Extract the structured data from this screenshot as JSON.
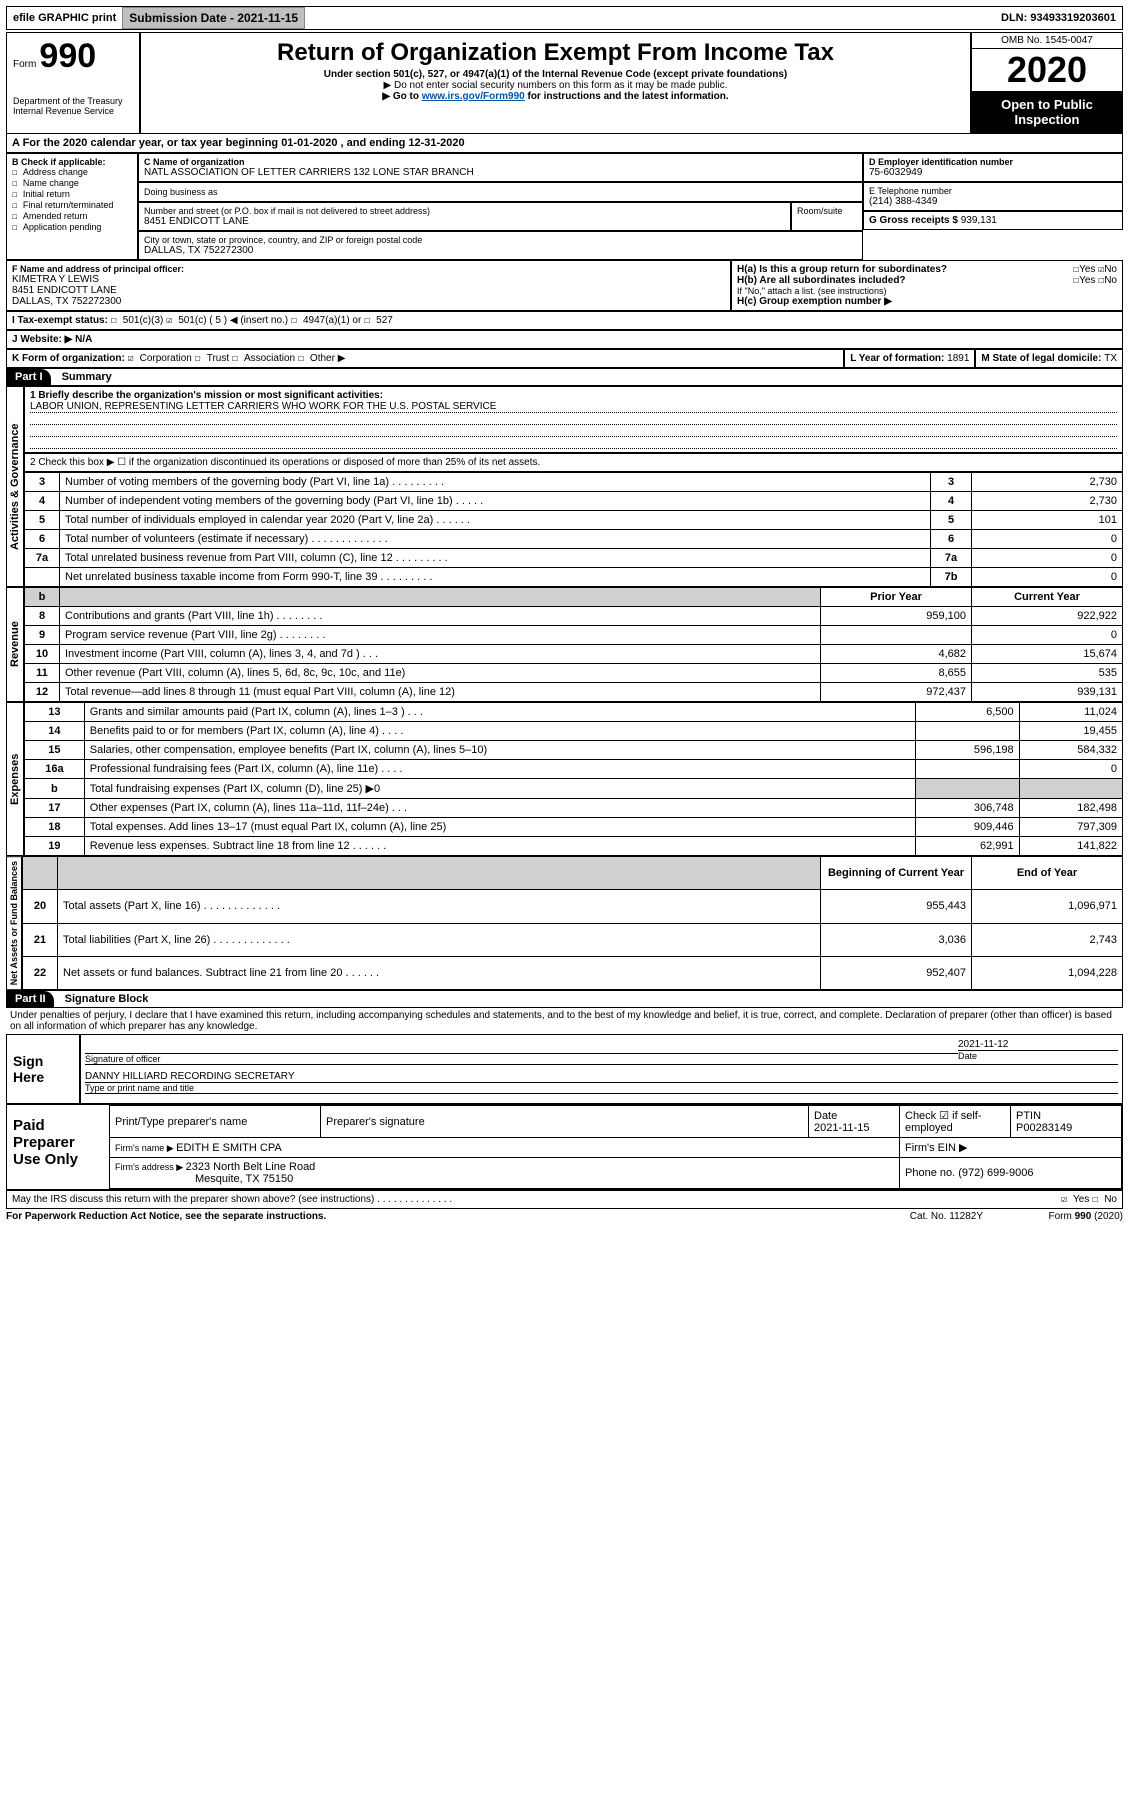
{
  "topbar": {
    "efile": "efile GRAPHIC print",
    "subdate_label": "Submission Date - 2021-11-15",
    "dln": "DLN: 93493319203601"
  },
  "header": {
    "form_label_small": "Form",
    "form_number": "990",
    "title": "Return of Organization Exempt From Income Tax",
    "subtitle1": "Under section 501(c), 527, or 4947(a)(1) of the Internal Revenue Code (except private foundations)",
    "subtitle2": "▶ Do not enter social security numbers on this form as it may be made public.",
    "subtitle3_pre": "▶ Go to ",
    "subtitle3_link": "www.irs.gov/Form990",
    "subtitle3_post": " for instructions and the latest information.",
    "omb": "OMB No. 1545-0047",
    "year": "2020",
    "inspection": "Open to Public Inspection",
    "dept": "Department of the Treasury\nInternal Revenue Service"
  },
  "A": {
    "line": "A For the 2020 calendar year, or tax year beginning 01-01-2020     , and ending 12-31-2020"
  },
  "B": {
    "label": "B Check if applicable:",
    "opts": [
      "Address change",
      "Name change",
      "Initial return",
      "Final return/terminated",
      "Amended return",
      "Application pending"
    ]
  },
  "C": {
    "name_label": "C Name of organization",
    "name": "NATL ASSOCIATION OF LETTER CARRIERS 132 LONE STAR BRANCH",
    "dba_label": "Doing business as",
    "street_label": "Number and street (or P.O. box if mail is not delivered to street address)",
    "room_label": "Room/suite",
    "street": "8451 ENDICOTT LANE",
    "city_label": "City or town, state or province, country, and ZIP or foreign postal code",
    "city": "DALLAS, TX   752272300"
  },
  "D": {
    "label": "D Employer identification number",
    "value": "75-6032949"
  },
  "E": {
    "label": "E Telephone number",
    "value": "(214) 388-4349"
  },
  "G": {
    "label": "G Gross receipts $ ",
    "value": "939,131"
  },
  "F": {
    "label": "F  Name and address of principal officer:",
    "line1": "KIMETRA Y LEWIS",
    "line2": "8451 ENDICOTT LANE",
    "line3": "DALLAS, TX   752272300"
  },
  "H": {
    "a": "H(a)  Is this a group return for subordinates?",
    "b": "H(b)  Are all subordinates included?",
    "b_note": "If \"No,\" attach a list. (see instructions)",
    "c": "H(c)  Group exemption number ▶",
    "yes": "Yes",
    "no": "No"
  },
  "I": {
    "label": "I    Tax-exempt status:",
    "o1": "501(c)(3)",
    "o2_pre": "501(c) ( 5 ) ◀ (insert no.)",
    "o3": "4947(a)(1) or",
    "o4": "527"
  },
  "J": {
    "label": "J    Website: ▶",
    "value": " N/A"
  },
  "K": {
    "label": "K Form of organization:",
    "o1": "Corporation",
    "o2": "Trust",
    "o3": "Association",
    "o4": "Other ▶"
  },
  "L": {
    "label": "L Year of formation: ",
    "value": "1891"
  },
  "M": {
    "label": "M State of legal domicile: ",
    "value": "TX"
  },
  "part1": {
    "hdr": "Part I",
    "title": "Summary"
  },
  "summary": {
    "side_gov": "Activities & Governance",
    "side_rev": "Revenue",
    "side_exp": "Expenses",
    "side_net": "Net Assets or Fund Balances",
    "l1": "1   Briefly describe the organization's mission or most significant activities:",
    "l1v": "LABOR UNION, REPRESENTING LETTER CARRIERS WHO WORK FOR THE U.S. POSTAL SERVICE",
    "l2": "2    Check this box ▶ ☐  if the organization discontinued its operations or disposed of more than 25% of its net assets.",
    "rows_gov": [
      {
        "n": "3",
        "t": "Number of voting members of the governing body (Part VI, line 1a)   .    .    .    .    .    .    .    .    .",
        "b": "3",
        "v": "2,730"
      },
      {
        "n": "4",
        "t": "Number of independent voting members of the governing body (Part VI, line 1b)  .    .    .    .    .",
        "b": "4",
        "v": "2,730"
      },
      {
        "n": "5",
        "t": "Total number of individuals employed in calendar year 2020 (Part V, line 2a)    .    .    .    .    .    .",
        "b": "5",
        "v": "101"
      },
      {
        "n": "6",
        "t": "Total number of volunteers (estimate if necessary)    .    .    .    .    .    .    .    .    .    .    .    .    .",
        "b": "6",
        "v": "0"
      },
      {
        "n": "7a",
        "t": "Total unrelated business revenue from Part VIII, column (C), line 12   .    .    .    .    .    .    .    .    .",
        "b": "7a",
        "v": "0"
      },
      {
        "n": "",
        "t": "Net unrelated business taxable income from Form 990-T, line 39    .    .    .    .    .    .    .    .    .",
        "b": "7b",
        "v": "0"
      }
    ],
    "col_prior": "Prior Year",
    "col_curr": "Current Year",
    "col_b": "b",
    "rows_rev": [
      {
        "n": "8",
        "t": "Contributions and grants (Part VIII, line 1h)    .    .    .    .    .    .    .    .",
        "p": "959,100",
        "c": "922,922"
      },
      {
        "n": "9",
        "t": "Program service revenue (Part VIII, line 2g)    .    .    .    .    .    .    .    .",
        "p": "",
        "c": "0"
      },
      {
        "n": "10",
        "t": "Investment income (Part VIII, column (A), lines 3, 4, and 7d )   .    .    .",
        "p": "4,682",
        "c": "15,674"
      },
      {
        "n": "11",
        "t": "Other revenue (Part VIII, column (A), lines 5, 6d, 8c, 9c, 10c, and 11e)",
        "p": "8,655",
        "c": "535"
      },
      {
        "n": "12",
        "t": "Total revenue—add lines 8 through 11 (must equal Part VIII, column (A), line 12)",
        "p": "972,437",
        "c": "939,131"
      }
    ],
    "rows_exp": [
      {
        "n": "13",
        "t": "Grants and similar amounts paid (Part IX, column (A), lines 1–3 )    .    .    .",
        "p": "6,500",
        "c": "11,024"
      },
      {
        "n": "14",
        "t": "Benefits paid to or for members (Part IX, column (A), line 4)    .    .    .    .",
        "p": "",
        "c": "19,455"
      },
      {
        "n": "15",
        "t": "Salaries, other compensation, employee benefits (Part IX, column (A), lines 5–10)",
        "p": "596,198",
        "c": "584,332"
      },
      {
        "n": "16a",
        "t": "Professional fundraising fees (Part IX, column (A), line 11e)    .    .    .    .",
        "p": "",
        "c": "0"
      },
      {
        "n": "b",
        "t": "Total fundraising expenses (Part IX, column (D), line 25) ▶0",
        "p": "SHADE",
        "c": "SHADE"
      },
      {
        "n": "17",
        "t": "Other expenses (Part IX, column (A), lines 11a–11d, 11f–24e)    .    .    .",
        "p": "306,748",
        "c": "182,498"
      },
      {
        "n": "18",
        "t": "Total expenses. Add lines 13–17 (must equal Part IX, column (A), line 25)",
        "p": "909,446",
        "c": "797,309"
      },
      {
        "n": "19",
        "t": "Revenue less expenses. Subtract line 18 from line 12    .    .    .    .    .    .",
        "p": "62,991",
        "c": "141,822"
      }
    ],
    "col_begin": "Beginning of Current Year",
    "col_end": "End of Year",
    "rows_net": [
      {
        "n": "20",
        "t": "Total assets (Part X, line 16)    .    .    .    .    .    .    .    .    .    .    .    .    .",
        "p": "955,443",
        "c": "1,096,971"
      },
      {
        "n": "21",
        "t": "Total liabilities (Part X, line 26)  .    .    .    .    .    .    .    .    .    .    .    .    .",
        "p": "3,036",
        "c": "2,743"
      },
      {
        "n": "22",
        "t": "Net assets or fund balances. Subtract line 21 from line 20    .    .    .    .    .    .",
        "p": "952,407",
        "c": "1,094,228"
      }
    ]
  },
  "part2": {
    "hdr": "Part II",
    "title": "Signature Block"
  },
  "sig": {
    "perjury": "Under penalties of perjury, I declare that I have examined this return, including accompanying schedules and statements, and to the best of my knowledge and belief, it is true, correct, and complete. Declaration of preparer (other than officer) is based on all information of which preparer has any knowledge.",
    "sign_here": "Sign Here",
    "sig_officer": "Signature of officer",
    "sig_date": "2021-11-12",
    "date_lbl": "Date",
    "officer_name": "DANNY HILLIARD RECORDING SECRETARY",
    "officer_type_lbl": "Type or print name and title",
    "paid": "Paid Preparer Use Only",
    "prep_name_lbl": "Print/Type preparer's name",
    "prep_sig_lbl": "Preparer's signature",
    "prep_date_lbl": "Date",
    "prep_date": "2021-11-15",
    "self_emp": "Check ☑  if self-employed",
    "ptin_lbl": "PTIN",
    "ptin": "P00283149",
    "firm_name_lbl": "Firm's name    ▶ ",
    "firm_name": "EDITH E SMITH CPA",
    "firm_ein_lbl": "Firm's EIN ▶",
    "firm_addr_lbl": "Firm's address ▶ ",
    "firm_addr1": "2323 North Belt Line Road",
    "firm_addr2": "Mesquite, TX   75150",
    "phone_lbl": "Phone no. ",
    "phone": "(972) 699-9006",
    "discuss": "May the IRS discuss this return with the preparer shown above? (see instructions)    .    .    .    .    .    .    .    .    .    .    .    .    .    .",
    "yes": "Yes",
    "no": "No"
  },
  "footer": {
    "left": "For Paperwork Reduction Act Notice, see the separate instructions.",
    "mid": "Cat. No. 11282Y",
    "right": "Form 990 (2020)"
  }
}
